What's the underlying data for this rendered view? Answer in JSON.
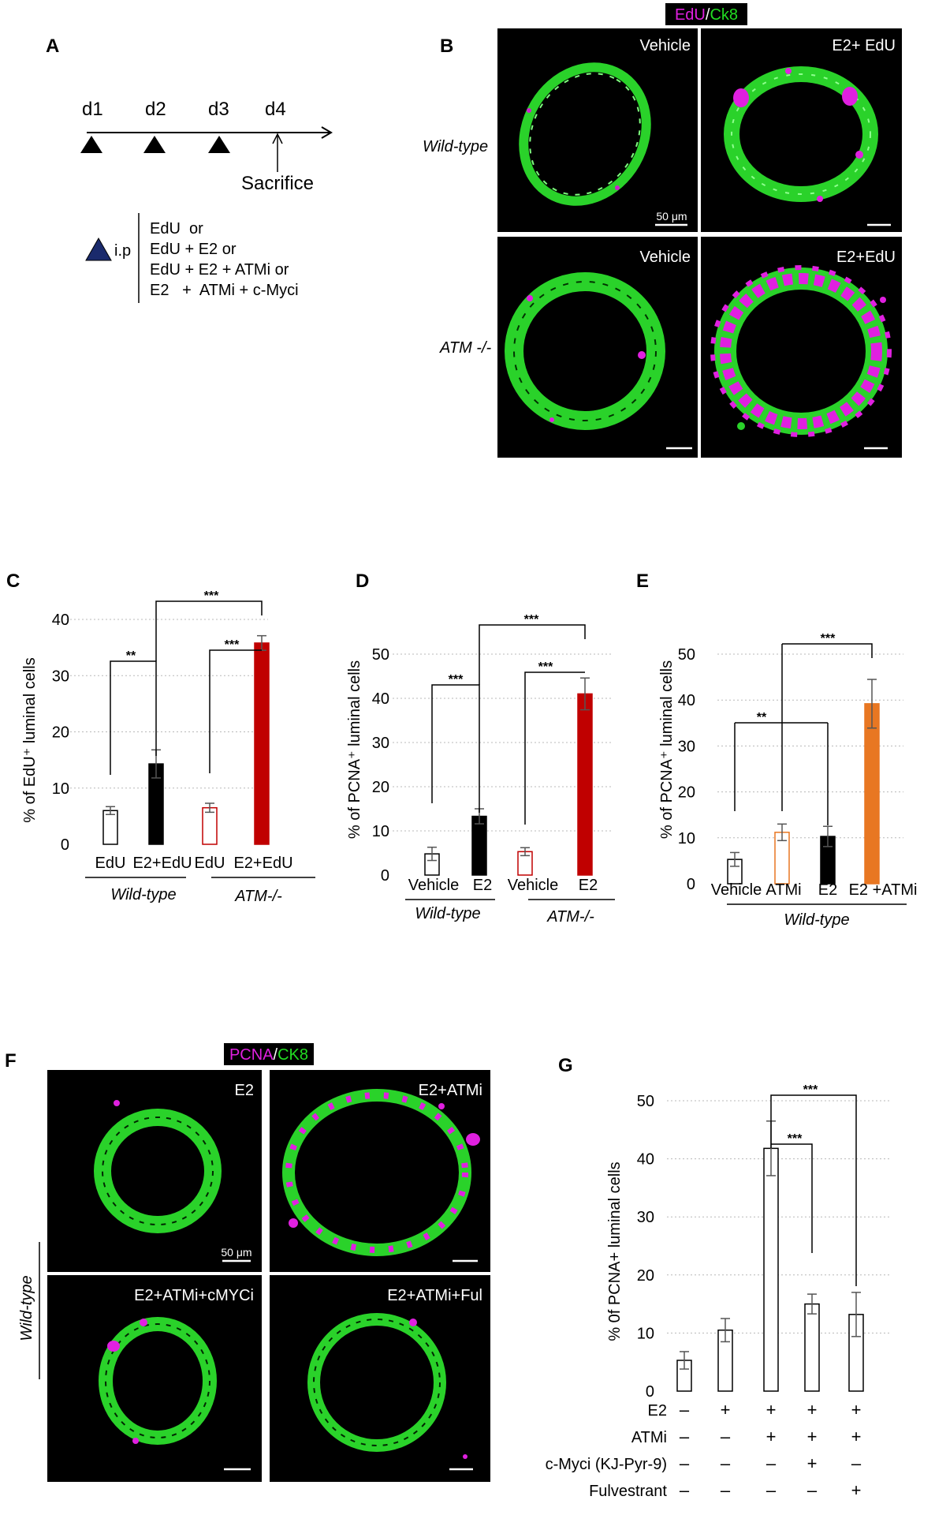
{
  "panel_letters": {
    "a": "A",
    "b": "B",
    "c": "C",
    "d": "D",
    "e": "E",
    "f": "F",
    "g": "G"
  },
  "panel_a": {
    "days": [
      "d1",
      "d2",
      "d3",
      "d4"
    ],
    "sacrifice": "Sacrifice",
    "ip": "i.p",
    "treatments": [
      "EdU  or",
      "EdU + E2 or",
      "EdU + E2 + ATMi or",
      "E2   +  ATMi + c-Myci"
    ]
  },
  "panel_b": {
    "stain_a": "EdU",
    "stain_sep": "/",
    "stain_b": "Ck8",
    "stain_a_color": "#e020e0",
    "stain_b_color": "#22dd22",
    "row_labels": [
      "Wild-type",
      "ATM -/-"
    ],
    "tiles": [
      "Vehicle",
      "E2+ EdU",
      "Vehicle",
      "E2+EdU"
    ],
    "scale": "50 μm"
  },
  "panel_f": {
    "stain_a": "PCNA",
    "stain_sep": "/",
    "stain_b": "CK8",
    "row_label": "Wild-type",
    "tiles": [
      "E2",
      "E2+ATMi",
      "E2+ATMi+cMYCi",
      "E2+ATMi+Ful"
    ],
    "scale": "50 μm"
  },
  "chart_data": [
    {
      "type": "bar",
      "panel": "C",
      "ylabel": "% of EdU⁺ luminal cells",
      "ylim": [
        0,
        40
      ],
      "yticks": [
        0,
        10,
        20,
        30,
        40
      ],
      "categories": [
        "EdU",
        "E2+EdU",
        "EdU",
        "E2+EdU"
      ],
      "values": [
        6,
        14.3,
        6.5,
        35.8
      ],
      "errors": [
        0.7,
        2.5,
        0.8,
        1.3
      ],
      "fill_colors": [
        "#ffffff",
        "#000000",
        "#ffffff",
        "#c00000"
      ],
      "edge_colors": [
        "#000000",
        "#000000",
        "#c00000",
        "#c00000"
      ],
      "groups": [
        "Wild-type",
        "ATM-/-"
      ],
      "significance": [
        "**",
        "***",
        "***"
      ],
      "grid": true
    },
    {
      "type": "bar",
      "panel": "D",
      "ylabel": "% of PCNA⁺ luminal cells",
      "ylim": [
        0,
        50
      ],
      "yticks": [
        0,
        10,
        20,
        30,
        40,
        50
      ],
      "categories": [
        "Vehicle",
        "E2",
        "Vehicle",
        "E2"
      ],
      "values": [
        4.8,
        13.3,
        5.3,
        41
      ],
      "errors": [
        1.5,
        1.7,
        0.9,
        3.6
      ],
      "fill_colors": [
        "#ffffff",
        "#000000",
        "#ffffff",
        "#c00000"
      ],
      "edge_colors": [
        "#000000",
        "#000000",
        "#c00000",
        "#c00000"
      ],
      "groups": [
        "Wild-type",
        "ATM-/-"
      ],
      "significance": [
        "***",
        "***",
        "***"
      ],
      "grid": true
    },
    {
      "type": "bar",
      "panel": "E",
      "ylabel": "% of PCNA⁺ luminal cells",
      "ylim": [
        0,
        50
      ],
      "yticks": [
        0,
        10,
        20,
        30,
        40,
        50
      ],
      "categories": [
        "Vehicle",
        "ATMi",
        "E2",
        "E2 +ATMi"
      ],
      "values": [
        5.3,
        11.2,
        10.3,
        39.2
      ],
      "errors": [
        1.5,
        1.8,
        2.2,
        5.3
      ],
      "fill_colors": [
        "#ffffff",
        "#ffffff",
        "#000000",
        "#e87722"
      ],
      "edge_colors": [
        "#000000",
        "#e87722",
        "#000000",
        "#e87722"
      ],
      "groups": [
        "Wild-type"
      ],
      "significance": [
        "**",
        "***"
      ],
      "grid": true
    },
    {
      "type": "bar",
      "panel": "G",
      "ylabel": "% 0f PCNA+ luminal cells",
      "ylim": [
        0,
        50
      ],
      "yticks": [
        0,
        10,
        20,
        30,
        40,
        50
      ],
      "values": [
        5.3,
        10.5,
        41.8,
        15,
        13.2
      ],
      "errors": [
        1.5,
        2.0,
        4.7,
        1.7,
        3.8
      ],
      "fill_colors": [
        "#ffffff",
        "#ffffff",
        "#ffffff",
        "#ffffff",
        "#ffffff"
      ],
      "edge_colors": [
        "#000000",
        "#000000",
        "#000000",
        "#000000",
        "#000000"
      ],
      "treatment_rows": [
        {
          "name": "E2",
          "signs": [
            "–",
            "+",
            "+",
            "+",
            "+"
          ]
        },
        {
          "name": "ATMi",
          "signs": [
            "–",
            "–",
            "+",
            "+",
            "+"
          ]
        },
        {
          "name": "c-Myci (KJ-Pyr-9)",
          "signs": [
            "–",
            "–",
            "–",
            "+",
            "–"
          ]
        },
        {
          "name": "Fulvestrant",
          "signs": [
            "–",
            "–",
            "–",
            "–",
            "+"
          ]
        }
      ],
      "significance": [
        "***",
        "***"
      ],
      "grid": true
    }
  ]
}
